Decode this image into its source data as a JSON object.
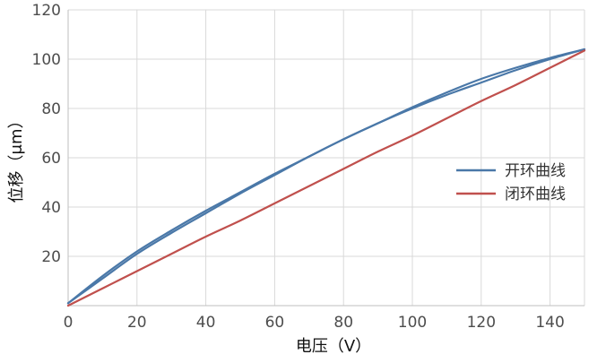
{
  "chart_data": {
    "type": "line",
    "title": "",
    "xlabel": "电压（V）",
    "ylabel": "位移（μm）",
    "xlim": [
      0,
      150
    ],
    "ylim": [
      0,
      120
    ],
    "xticks": [
      0,
      20,
      40,
      60,
      80,
      100,
      120,
      140
    ],
    "yticks": [
      20,
      40,
      60,
      80,
      100,
      120
    ],
    "grid": true,
    "legend_position": "right",
    "series": [
      {
        "name": "开环曲线",
        "color": "#4a78a8",
        "role": "hysteresis-ascending",
        "x": [
          0,
          10,
          20,
          30,
          40,
          50,
          60,
          70,
          80,
          90,
          100,
          110,
          120,
          130,
          140,
          150
        ],
        "y": [
          1,
          11,
          21,
          29.5,
          37.5,
          45.5,
          53,
          60.5,
          67.5,
          74,
          80,
          85.5,
          90.5,
          95.5,
          100,
          104
        ]
      },
      {
        "name": "",
        "color": "#4a78a8",
        "role": "hysteresis-descending",
        "x": [
          150,
          140,
          130,
          120,
          110,
          100,
          90,
          80,
          70,
          60,
          50,
          40,
          30,
          20,
          10,
          0
        ],
        "y": [
          104,
          100.5,
          96.5,
          92,
          86.5,
          80.5,
          74,
          67.5,
          60.5,
          53.5,
          46,
          38.5,
          30.5,
          22,
          12,
          1
        ]
      },
      {
        "name": "闭环曲线",
        "color": "#c0504d",
        "role": "closed-loop",
        "x": [
          0,
          10,
          20,
          30,
          40,
          50,
          60,
          70,
          80,
          90,
          100,
          110,
          120,
          130,
          140,
          150
        ],
        "y": [
          0,
          7,
          14,
          21,
          28,
          34.5,
          41.5,
          48.5,
          55.5,
          62.5,
          69,
          76,
          83,
          89.5,
          96.5,
          103.5
        ]
      }
    ]
  }
}
